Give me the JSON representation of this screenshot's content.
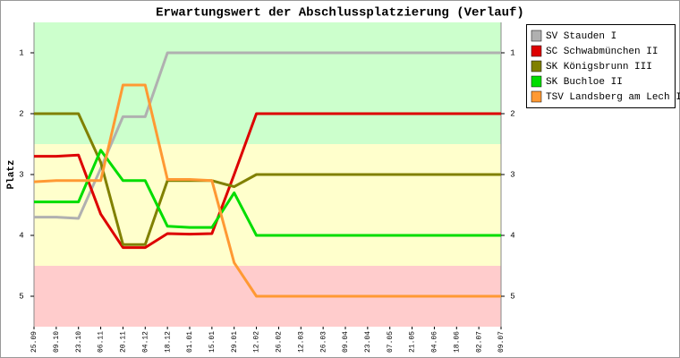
{
  "chart_data": {
    "type": "line",
    "title": "Erwartungswert der Abschlussplatzierung (Verlauf)",
    "y_label": "Platz",
    "categories": [
      "25.09",
      "09.10",
      "23.10",
      "06.11",
      "20.11",
      "04.12",
      "18.12",
      "01.01",
      "15.01",
      "29.01",
      "12.02",
      "26.02",
      "12.03",
      "26.03",
      "09.04",
      "23.04",
      "07.05",
      "21.05",
      "04.06",
      "18.06",
      "02.07",
      "09.07"
    ],
    "ylim": [
      0.5,
      5.5
    ],
    "y_inverted": true,
    "yticks": [
      1,
      2,
      3,
      4,
      5
    ],
    "bands": [
      {
        "from": 0.5,
        "to": 2.5,
        "color": "#ccffcc"
      },
      {
        "from": 2.5,
        "to": 4.5,
        "color": "#ffffcc"
      },
      {
        "from": 4.5,
        "to": 5.5,
        "color": "#ffcccc"
      }
    ],
    "series": [
      {
        "name": "SV Stauden I",
        "color": "#b0b0b0",
        "values": [
          3.7,
          3.7,
          3.72,
          2.9,
          2.05,
          2.05,
          1,
          1,
          1,
          1,
          1,
          1,
          1,
          1,
          1,
          1,
          1,
          1,
          1,
          1,
          1,
          1
        ]
      },
      {
        "name": "SC Schwabmünchen II",
        "color": "#dd0000",
        "values": [
          2.7,
          2.7,
          2.68,
          3.65,
          4.2,
          4.2,
          3.97,
          3.98,
          3.97,
          3,
          2,
          2,
          2,
          2,
          2,
          2,
          2,
          2,
          2,
          2,
          2,
          2
        ]
      },
      {
        "name": "SK Königsbrunn III",
        "color": "#808000",
        "values": [
          2,
          2,
          2,
          2.8,
          4.15,
          4.15,
          3.1,
          3.1,
          3.1,
          3.2,
          3,
          3,
          3,
          3,
          3,
          3,
          3,
          3,
          3,
          3,
          3,
          3
        ]
      },
      {
        "name": "SK Buchloe II",
        "color": "#00dd00",
        "values": [
          3.45,
          3.45,
          3.45,
          2.6,
          3.1,
          3.1,
          3.85,
          3.87,
          3.87,
          3.3,
          4,
          4,
          4,
          4,
          4,
          4,
          4,
          4,
          4,
          4,
          4,
          4
        ]
      },
      {
        "name": "TSV Landsberg am Lech II",
        "color": "#ff9933",
        "values": [
          3.12,
          3.1,
          3.1,
          3.1,
          1.53,
          1.53,
          3.08,
          3.08,
          3.1,
          4.45,
          5,
          5,
          5,
          5,
          5,
          5,
          5,
          5,
          5,
          5,
          5,
          5
        ]
      }
    ]
  }
}
